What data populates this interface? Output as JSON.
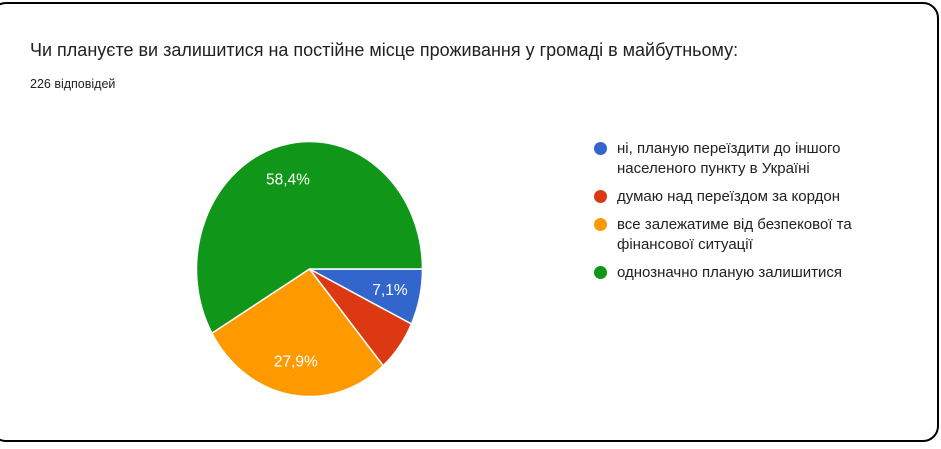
{
  "chart_data": {
    "type": "pie",
    "title": "Чи плануєте ви залишитися на постійне місце проживання у громаді в майбутньому:",
    "subtitle": "226 відповідей",
    "start_angle_deg": 0,
    "direction": "clockwise",
    "legend_position": "right",
    "label_color": "#ffffff",
    "slices": [
      {
        "label": "ні, планую переїздити до іншого населеного пункту в Україні",
        "value_pct": 7.1,
        "displayed_label": "7,1%",
        "color": "#3366CC"
      },
      {
        "label": "думаю над переїздом за кордон",
        "value_pct": 6.6,
        "displayed_label": "",
        "color": "#DC3912"
      },
      {
        "label": "все залежатиме від безпекової та фінансової ситуації",
        "value_pct": 27.9,
        "displayed_label": "27,9%",
        "color": "#FF9900"
      },
      {
        "label": "однозначно планую залишитися",
        "value_pct": 58.4,
        "displayed_label": "58,4%",
        "color": "#109618"
      }
    ]
  }
}
